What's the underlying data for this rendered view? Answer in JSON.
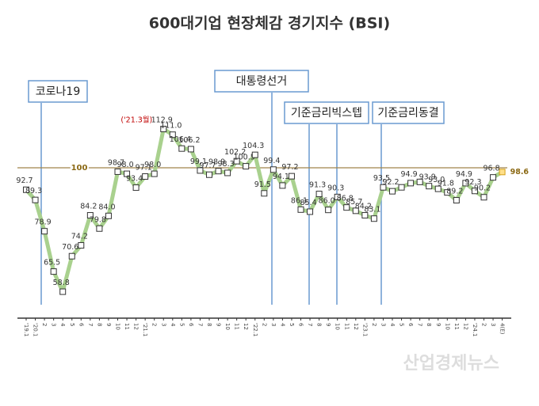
{
  "chart_data": {
    "type": "line",
    "title": "600대기업 현장체감 경기지수 (BSI)",
    "categories": [
      "'19.1",
      "'20.1",
      "2",
      "3",
      "4",
      "5",
      "6",
      "7",
      "8",
      "9",
      "10",
      "11",
      "12",
      "'21.1",
      "2",
      "3",
      "4",
      "5",
      "6",
      "7",
      "8",
      "9",
      "10",
      "11",
      "12",
      "'22.1",
      "2",
      "3",
      "4",
      "5",
      "6",
      "7",
      "8",
      "9",
      "10",
      "11",
      "12",
      "'23.1",
      "2",
      "3",
      "4",
      "5",
      "6",
      "7",
      "8",
      "9",
      "10",
      "11",
      "12",
      "'24.1",
      "2",
      "3",
      "4(E)"
    ],
    "series": [
      {
        "name": "BSI",
        "color": "#a9d18e",
        "values": [
          92.7,
          89.3,
          78.9,
          65.5,
          58.8,
          70.6,
          74.2,
          84.2,
          79.8,
          84.0,
          98.7,
          98.0,
          93.4,
          97.1,
          98.0,
          112.9,
          111.0,
          106.4,
          106.2,
          99.1,
          97.7,
          98.9,
          98.3,
          102.2,
          100.5,
          104.3,
          91.5,
          99.4,
          94.1,
          97.2,
          86.1,
          85.4,
          91.3,
          86.0,
          90.3,
          86.8,
          85.7,
          84.2,
          83.1,
          93.5,
          92.2,
          93.5,
          94.9,
          95.3,
          93.9,
          93.0,
          91.8,
          89.2,
          94.9,
          92.3,
          90.2,
          96.8,
          98.6
        ],
        "value_labels": [
          "92.7",
          "89.3",
          "78.9",
          "65.5",
          "58.8",
          "70.6",
          "74.2",
          "84.2",
          "79.8",
          "84.0",
          "98.7",
          "98.0",
          "93.4",
          "97.1",
          "98.0",
          "112.9",
          "111.0",
          "106.4",
          "106.2",
          "99.1",
          "97.7",
          "98.9",
          "98.3",
          "102.2",
          "100.5",
          "104.3",
          "91.5",
          "99.4",
          "94.1",
          "97.2",
          "86.1",
          "85.4",
          "91.3",
          "86.0",
          "90.3",
          "86.8",
          "85.7",
          "84.2",
          "83.1",
          "93.5",
          "92.2",
          null,
          "94.9",
          null,
          "93.9",
          "93.0",
          "91.8",
          "89.2",
          "94.9",
          "92.3",
          "90.2",
          "96.8",
          "98.6"
        ]
      }
    ],
    "reference_line": 100,
    "ylim": [
      50,
      120
    ],
    "annotations": [
      "코로나19",
      "대통령선거",
      "기준금리빅스텝",
      "기준금리동결"
    ],
    "peak_note": "('21.3월)",
    "watermark": "산업경제뉴스"
  }
}
